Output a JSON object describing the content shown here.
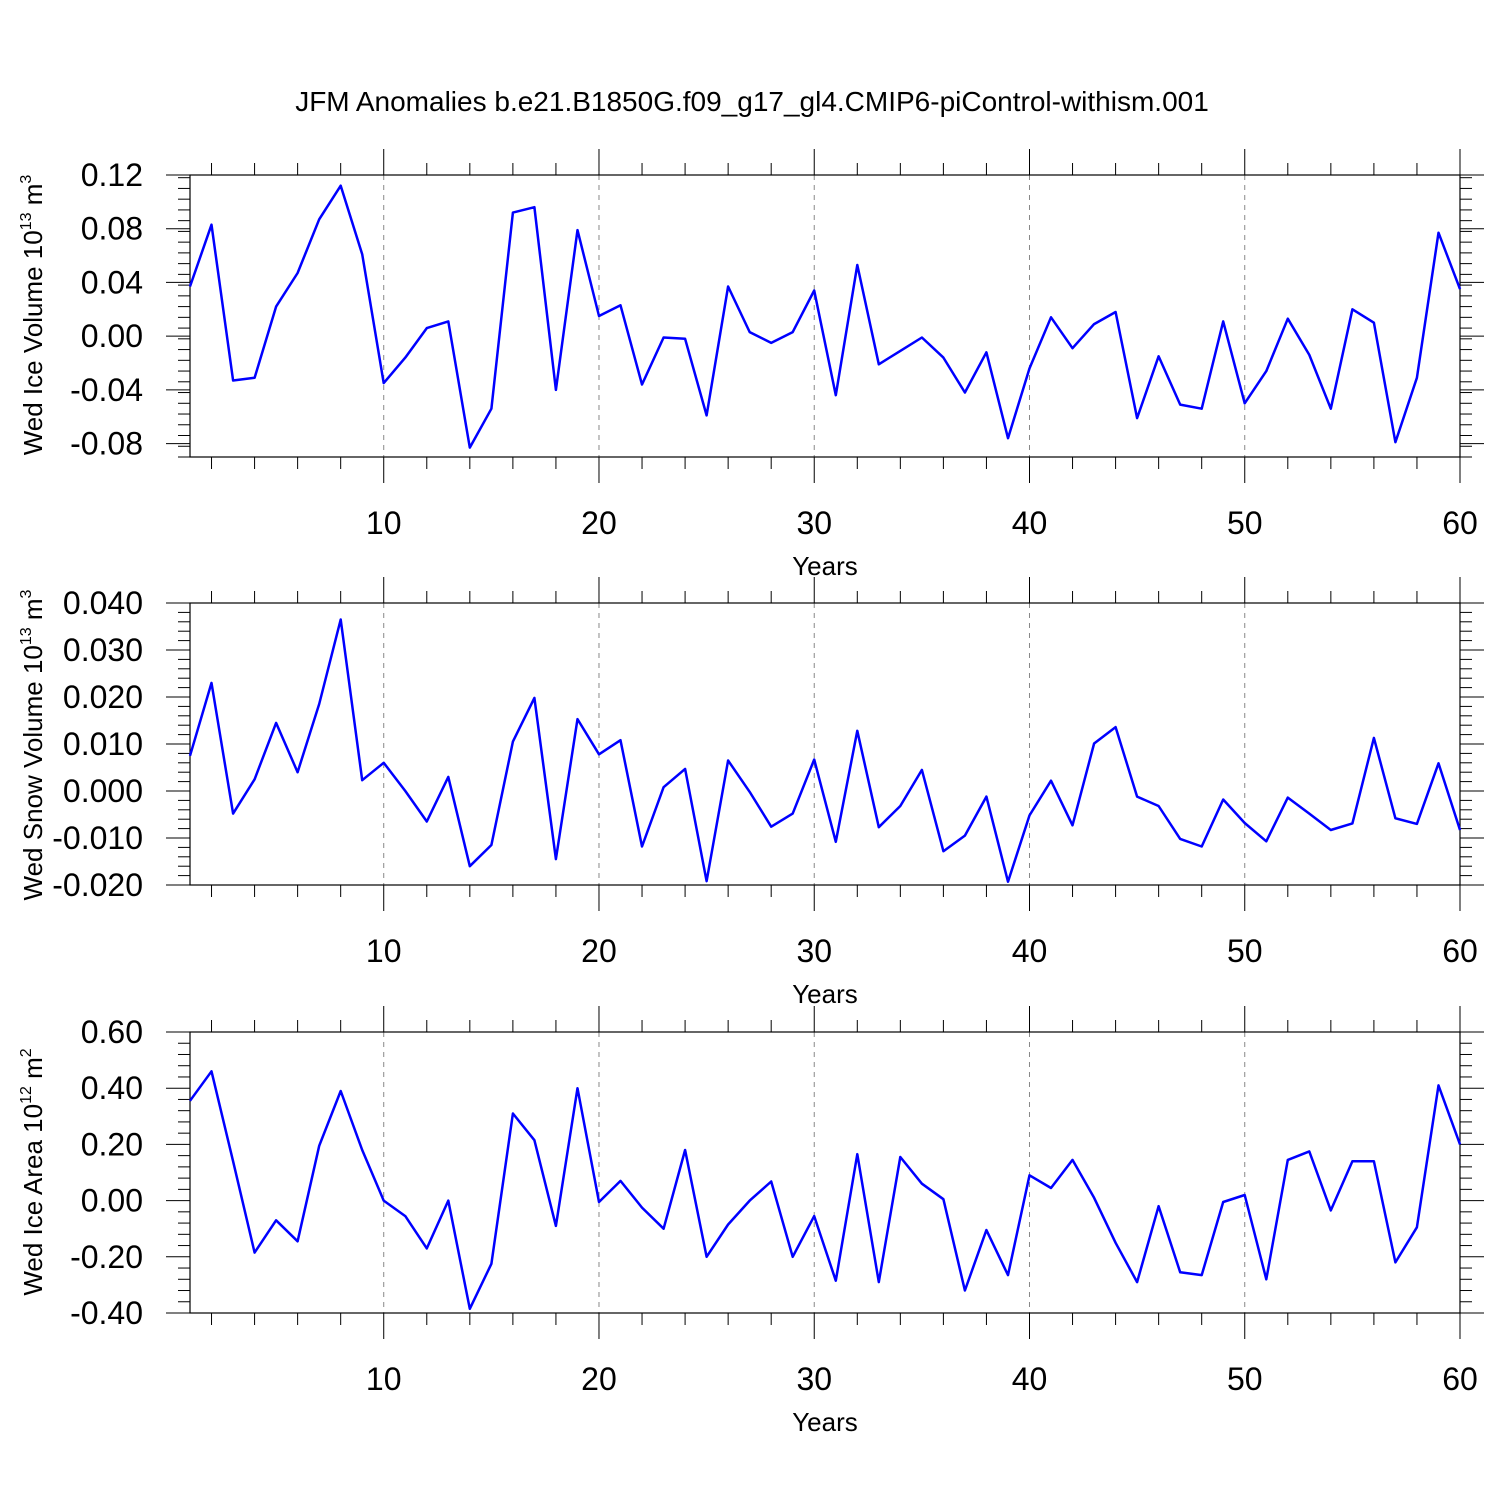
{
  "title": "JFM Anomalies b.e21.B1850G.f09_g17_gl4.CMIP6-piControl-withism.001",
  "colors": {
    "line": "#0000ff",
    "axis": "#000000",
    "grid": "#888888"
  },
  "chart_data": [
    {
      "type": "line",
      "id": "ice-volume",
      "ylabel_main": "Wed Ice Volume 10",
      "ylabel_exp": "13",
      "ylabel_unit": " m",
      "ylabel_unit_exp": "3",
      "xlabel": "Years",
      "xlim": [
        1,
        60
      ],
      "ylim": [
        -0.09,
        0.12
      ],
      "xticks": [
        10,
        20,
        30,
        40,
        50,
        60
      ],
      "xtick_labels": [
        "10",
        "20",
        "30",
        "40",
        "50",
        "60"
      ],
      "yticks": [
        0.12,
        0.08,
        0.04,
        0.0,
        -0.04,
        -0.08
      ],
      "ytick_labels": [
        "0.12",
        "0.08",
        "0.04",
        "0.00",
        "-0.04",
        "-0.08"
      ],
      "grid": "vertical dashed at major x ticks",
      "series": [
        {
          "name": "Wed Ice Volume",
          "values": [
            0.037,
            0.083,
            -0.033,
            -0.031,
            0.022,
            0.047,
            0.087,
            0.112,
            0.061,
            -0.035,
            -0.016,
            0.006,
            0.011,
            -0.083,
            -0.054,
            0.092,
            0.096,
            -0.04,
            0.079,
            0.015,
            0.023,
            -0.036,
            -0.001,
            -0.002,
            -0.059,
            0.037,
            0.003,
            -0.005,
            0.003,
            0.034,
            -0.044,
            0.053,
            -0.021,
            -0.011,
            -0.001,
            -0.016,
            -0.042,
            -0.012,
            -0.076,
            -0.024,
            0.014,
            -0.009,
            0.009,
            0.018,
            -0.061,
            -0.015,
            -0.051,
            -0.054,
            0.011,
            -0.05,
            -0.026,
            0.013,
            -0.014,
            -0.054,
            0.02,
            0.01,
            -0.079,
            -0.031,
            0.077,
            0.035
          ]
        }
      ]
    },
    {
      "type": "line",
      "id": "snow-volume",
      "ylabel_main": "Wed Snow Volume 10",
      "ylabel_exp": "13",
      "ylabel_unit": " m",
      "ylabel_unit_exp": "3",
      "xlabel": "Years",
      "xlim": [
        1,
        60
      ],
      "ylim": [
        -0.02,
        0.04
      ],
      "xticks": [
        10,
        20,
        30,
        40,
        50,
        60
      ],
      "xtick_labels": [
        "10",
        "20",
        "30",
        "40",
        "50",
        "60"
      ],
      "yticks": [
        0.04,
        0.03,
        0.02,
        0.01,
        0.0,
        -0.01,
        -0.02
      ],
      "ytick_labels": [
        "0.040",
        "0.030",
        "0.020",
        "0.010",
        "0.000",
        "-0.010",
        "-0.020"
      ],
      "grid": "vertical dashed at major x ticks",
      "series": [
        {
          "name": "Wed Snow Volume",
          "values": [
            0.0075,
            0.023,
            -0.0048,
            0.0025,
            0.0145,
            0.004,
            0.0185,
            0.0365,
            0.0023,
            0.006,
            0.0,
            -0.0065,
            0.003,
            -0.016,
            -0.0115,
            0.0105,
            0.0198,
            -0.0145,
            0.0153,
            0.0078,
            0.0108,
            -0.0118,
            0.0008,
            0.0047,
            -0.0192,
            0.0065,
            -0.0002,
            -0.0076,
            -0.0048,
            0.0067,
            -0.0108,
            0.0128,
            -0.0077,
            -0.0032,
            0.0045,
            -0.0128,
            -0.0095,
            -0.0012,
            -0.0193,
            -0.0052,
            0.0022,
            -0.0073,
            0.0101,
            0.0136,
            -0.0012,
            -0.0032,
            -0.0102,
            -0.0118,
            -0.0018,
            -0.0068,
            -0.0107,
            -0.0014,
            -0.0048,
            -0.0083,
            -0.0069,
            0.0113,
            -0.0058,
            -0.007,
            0.0059,
            -0.0083
          ]
        }
      ]
    },
    {
      "type": "line",
      "id": "ice-area",
      "ylabel_main": "Wed Ice Area 10",
      "ylabel_exp": "12",
      "ylabel_unit": " m",
      "ylabel_unit_exp": "2",
      "xlabel": "Years",
      "xlim": [
        1,
        60
      ],
      "ylim": [
        -0.4,
        0.6
      ],
      "xticks": [
        10,
        20,
        30,
        40,
        50,
        60
      ],
      "xtick_labels": [
        "10",
        "20",
        "30",
        "40",
        "50",
        "60"
      ],
      "yticks": [
        0.6,
        0.4,
        0.2,
        0.0,
        -0.2,
        -0.4
      ],
      "ytick_labels": [
        "0.60",
        "0.40",
        "0.20",
        "0.00",
        "-0.20",
        "-0.40"
      ],
      "grid": "vertical dashed at major x ticks",
      "series": [
        {
          "name": "Wed Ice Area",
          "values": [
            0.355,
            0.46,
            0.14,
            -0.185,
            -0.07,
            -0.145,
            0.195,
            0.39,
            0.18,
            0.0,
            -0.055,
            -0.17,
            0.0,
            -0.385,
            -0.225,
            0.31,
            0.215,
            -0.09,
            0.4,
            -0.005,
            0.07,
            -0.025,
            -0.1,
            0.18,
            -0.2,
            -0.085,
            0.0,
            0.068,
            -0.2,
            -0.055,
            -0.285,
            0.165,
            -0.29,
            0.155,
            0.06,
            0.005,
            -0.32,
            -0.105,
            -0.265,
            0.09,
            0.045,
            0.145,
            0.01,
            -0.15,
            -0.29,
            -0.02,
            -0.255,
            -0.265,
            -0.005,
            0.02,
            -0.28,
            0.145,
            0.175,
            -0.035,
            0.14,
            0.14,
            -0.22,
            -0.095,
            0.41,
            0.2
          ]
        }
      ]
    }
  ]
}
